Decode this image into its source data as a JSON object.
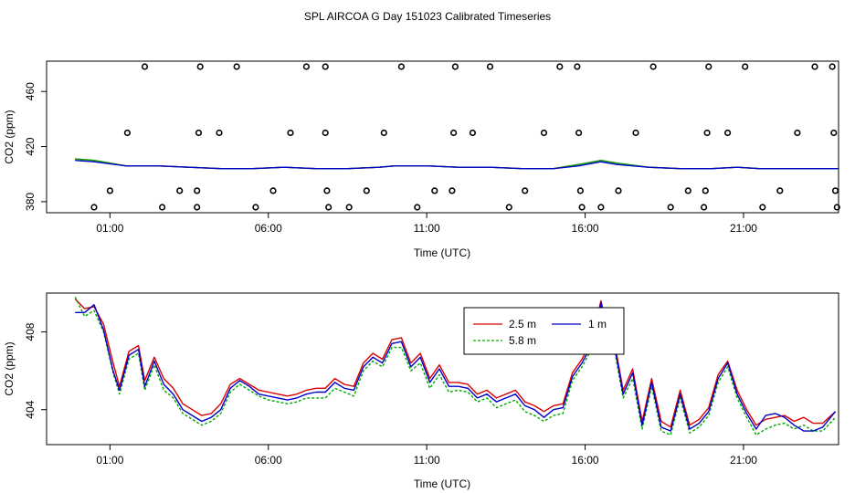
{
  "figure": {
    "title": "SPL AIRCOA G  Day 151023  Calibrated Timeseries"
  },
  "chart_data": [
    {
      "type": "scatter+line",
      "xlabel": "Time (UTC)",
      "ylabel": "CO2 (ppm)",
      "xlim": [
        -1.0,
        24.0
      ],
      "ylim": [
        372,
        482
      ],
      "x_ticks": [
        1,
        6,
        11,
        16,
        21
      ],
      "x_tick_labels": [
        "01:00",
        "06:00",
        "11:00",
        "16:00",
        "21:00"
      ],
      "y_ticks": [
        380,
        420,
        460
      ],
      "y_tick_labels": [
        "380",
        "420",
        "460"
      ],
      "grid": false,
      "legend": "none",
      "points": [
        {
          "x": 0.5,
          "y": 376
        },
        {
          "x": 1.0,
          "y": 388
        },
        {
          "x": 1.55,
          "y": 430
        },
        {
          "x": 2.1,
          "y": 478
        },
        {
          "x": 2.65,
          "y": 376
        },
        {
          "x": 3.2,
          "y": 388
        },
        {
          "x": 3.75,
          "y": 376
        },
        {
          "x": 3.75,
          "y": 388
        },
        {
          "x": 3.8,
          "y": 430
        },
        {
          "x": 3.85,
          "y": 478
        },
        {
          "x": 4.45,
          "y": 430
        },
        {
          "x": 5.0,
          "y": 478
        },
        {
          "x": 5.6,
          "y": 376
        },
        {
          "x": 6.15,
          "y": 388
        },
        {
          "x": 6.7,
          "y": 430
        },
        {
          "x": 7.2,
          "y": 478
        },
        {
          "x": 7.8,
          "y": 478
        },
        {
          "x": 7.8,
          "y": 430
        },
        {
          "x": 7.85,
          "y": 388
        },
        {
          "x": 7.9,
          "y": 376
        },
        {
          "x": 8.55,
          "y": 376
        },
        {
          "x": 9.1,
          "y": 388
        },
        {
          "x": 9.65,
          "y": 430
        },
        {
          "x": 10.2,
          "y": 478
        },
        {
          "x": 10.7,
          "y": 376
        },
        {
          "x": 11.25,
          "y": 388
        },
        {
          "x": 11.8,
          "y": 388
        },
        {
          "x": 11.85,
          "y": 430
        },
        {
          "x": 11.9,
          "y": 478
        },
        {
          "x": 12.45,
          "y": 430
        },
        {
          "x": 13.0,
          "y": 478
        },
        {
          "x": 13.6,
          "y": 376
        },
        {
          "x": 14.1,
          "y": 388
        },
        {
          "x": 14.7,
          "y": 430
        },
        {
          "x": 15.2,
          "y": 478
        },
        {
          "x": 15.75,
          "y": 478
        },
        {
          "x": 15.8,
          "y": 430
        },
        {
          "x": 15.85,
          "y": 388
        },
        {
          "x": 15.9,
          "y": 376
        },
        {
          "x": 16.5,
          "y": 376
        },
        {
          "x": 17.05,
          "y": 388
        },
        {
          "x": 17.6,
          "y": 430
        },
        {
          "x": 18.15,
          "y": 478
        },
        {
          "x": 18.7,
          "y": 376
        },
        {
          "x": 19.25,
          "y": 388
        },
        {
          "x": 19.75,
          "y": 376
        },
        {
          "x": 19.8,
          "y": 388
        },
        {
          "x": 19.85,
          "y": 430
        },
        {
          "x": 19.9,
          "y": 478
        },
        {
          "x": 20.5,
          "y": 430
        },
        {
          "x": 21.05,
          "y": 478
        },
        {
          "x": 21.6,
          "y": 376
        },
        {
          "x": 22.15,
          "y": 388
        },
        {
          "x": 22.7,
          "y": 430
        },
        {
          "x": 23.25,
          "y": 478
        },
        {
          "x": 23.8,
          "y": 478
        },
        {
          "x": 23.85,
          "y": 430
        },
        {
          "x": 23.9,
          "y": 388
        },
        {
          "x": 23.95,
          "y": 376
        }
      ],
      "series": [
        {
          "color": "#dd0000",
          "x": [
            -0.1,
            0.5,
            1.5,
            2.5,
            3.5,
            4.5,
            5.5,
            6.5,
            7.5,
            8.5,
            9.5,
            10.0,
            11.0,
            12.0,
            13.0,
            14.0,
            15.0,
            15.8,
            16.5,
            17.0,
            18.0,
            19.0,
            20.0,
            20.8,
            21.5,
            22.5,
            23.0,
            24.0
          ],
          "values": [
            411,
            410,
            406,
            406,
            405,
            404,
            404,
            405,
            404,
            404,
            405,
            406,
            406,
            405,
            405,
            404,
            404,
            407,
            410,
            408,
            405,
            404,
            404,
            405,
            404,
            404,
            404,
            404
          ]
        },
        {
          "color": "#00aa00",
          "x": [
            -0.1,
            0.5,
            1.5,
            2.5,
            3.5,
            4.5,
            5.5,
            6.5,
            7.5,
            8.5,
            9.5,
            10.0,
            11.0,
            12.0,
            13.0,
            14.0,
            15.0,
            15.8,
            16.5,
            17.0,
            18.0,
            19.0,
            20.0,
            20.8,
            21.5,
            22.5,
            23.0,
            24.0
          ],
          "values": [
            411,
            410,
            406,
            406,
            405,
            404,
            404,
            405,
            404,
            404,
            405,
            406,
            406,
            405,
            405,
            404,
            404,
            407,
            410,
            408,
            405,
            404,
            404,
            405,
            404,
            404,
            404,
            404
          ]
        },
        {
          "color": "#0000cc",
          "x": [
            -0.1,
            0.5,
            1.5,
            2.5,
            3.5,
            4.5,
            5.5,
            6.5,
            7.5,
            8.5,
            9.5,
            10.0,
            11.0,
            12.0,
            13.0,
            14.0,
            15.0,
            15.8,
            16.5,
            17.0,
            18.0,
            19.0,
            20.0,
            20.8,
            21.5,
            22.5,
            23.0,
            24.0
          ],
          "values": [
            410,
            409,
            406,
            406,
            405,
            404,
            404,
            405,
            404,
            404,
            405,
            406,
            406,
            405,
            405,
            404,
            404,
            406,
            409,
            407,
            405,
            404,
            404,
            405,
            404,
            404,
            404,
            404
          ]
        }
      ]
    },
    {
      "type": "line",
      "xlabel": "Time (UTC)",
      "ylabel": "CO2 (ppm)",
      "xlim": [
        -1.0,
        24.0
      ],
      "ylim": [
        402.2,
        410.0
      ],
      "x_ticks": [
        1,
        6,
        11,
        16,
        21
      ],
      "x_tick_labels": [
        "01:00",
        "06:00",
        "11:00",
        "16:00",
        "21:00"
      ],
      "y_ticks": [
        404,
        408
      ],
      "y_tick_labels": [
        "404",
        "408"
      ],
      "grid": false,
      "legend": "top-right",
      "series": [
        {
          "name": "2.5 m",
          "color": "#dd0000",
          "dash": "",
          "x": [
            -0.1,
            0.2,
            0.5,
            0.8,
            1.1,
            1.3,
            1.6,
            1.9,
            2.1,
            2.4,
            2.7,
            3.0,
            3.3,
            3.6,
            3.9,
            4.2,
            4.5,
            4.8,
            5.1,
            5.4,
            5.7,
            6.0,
            6.3,
            6.6,
            6.9,
            7.2,
            7.5,
            7.8,
            8.1,
            8.4,
            8.7,
            9.0,
            9.3,
            9.6,
            9.9,
            10.2,
            10.5,
            10.8,
            11.1,
            11.4,
            11.7,
            12.0,
            12.3,
            12.6,
            12.9,
            13.2,
            13.5,
            13.8,
            14.1,
            14.4,
            14.7,
            15.0,
            15.3,
            15.6,
            15.9,
            16.2,
            16.5,
            16.7,
            16.9,
            17.2,
            17.5,
            17.8,
            18.1,
            18.4,
            18.7,
            19.0,
            19.3,
            19.6,
            19.9,
            20.2,
            20.5,
            20.8,
            21.1,
            21.4,
            21.7,
            22.0,
            22.3,
            22.6,
            22.9,
            23.2,
            23.5,
            23.9
          ],
          "values": [
            409.7,
            409.2,
            409.3,
            408.4,
            406.4,
            405.2,
            407.0,
            407.3,
            405.5,
            406.7,
            405.6,
            405.1,
            404.3,
            404.0,
            403.7,
            403.8,
            404.3,
            405.3,
            405.6,
            405.3,
            405.0,
            404.9,
            404.8,
            404.7,
            404.8,
            405.0,
            405.1,
            405.1,
            405.6,
            405.3,
            405.2,
            406.4,
            406.9,
            406.6,
            407.6,
            407.7,
            406.4,
            406.9,
            405.6,
            406.3,
            405.4,
            405.4,
            405.3,
            404.8,
            405.0,
            404.6,
            404.8,
            405.0,
            404.4,
            404.2,
            403.9,
            404.2,
            404.3,
            405.9,
            406.6,
            407.5,
            409.6,
            408.2,
            407.7,
            405.0,
            406.1,
            403.4,
            405.6,
            403.4,
            403.1,
            405.0,
            403.2,
            403.5,
            404.1,
            405.8,
            406.5,
            405.0,
            404.0,
            403.2,
            403.5,
            403.6,
            403.7,
            403.4,
            403.6,
            403.3,
            403.3,
            403.9
          ]
        },
        {
          "name": "5.8 m",
          "color": "#00aa00",
          "dash": "3,2",
          "x": [
            -0.1,
            0.2,
            0.5,
            0.8,
            1.1,
            1.3,
            1.6,
            1.9,
            2.1,
            2.4,
            2.7,
            3.0,
            3.3,
            3.6,
            3.9,
            4.2,
            4.5,
            4.8,
            5.1,
            5.4,
            5.7,
            6.0,
            6.3,
            6.6,
            6.9,
            7.2,
            7.5,
            7.8,
            8.1,
            8.4,
            8.7,
            9.0,
            9.3,
            9.6,
            9.9,
            10.2,
            10.5,
            10.8,
            11.1,
            11.4,
            11.7,
            12.0,
            12.3,
            12.6,
            12.9,
            13.2,
            13.5,
            13.8,
            14.1,
            14.4,
            14.7,
            15.0,
            15.3,
            15.6,
            15.9,
            16.2,
            16.5,
            16.7,
            16.9,
            17.2,
            17.5,
            17.8,
            18.1,
            18.4,
            18.7,
            19.0,
            19.3,
            19.6,
            19.9,
            20.2,
            20.5,
            20.8,
            21.1,
            21.4,
            21.7,
            22.0,
            22.3,
            22.6,
            22.9,
            23.2,
            23.5,
            23.9
          ],
          "values": [
            409.8,
            408.8,
            409.1,
            408.0,
            405.9,
            404.8,
            406.6,
            406.9,
            405.0,
            406.3,
            405.0,
            404.6,
            403.8,
            403.5,
            403.2,
            403.4,
            403.8,
            404.9,
            405.3,
            405.0,
            404.7,
            404.5,
            404.4,
            404.3,
            404.4,
            404.6,
            404.6,
            404.6,
            405.1,
            404.9,
            404.7,
            406.0,
            406.5,
            406.2,
            407.2,
            407.2,
            406.0,
            406.4,
            405.1,
            405.8,
            404.9,
            405.0,
            404.9,
            404.4,
            404.6,
            404.1,
            404.3,
            404.5,
            403.9,
            403.7,
            403.4,
            403.7,
            403.8,
            405.5,
            406.2,
            407.1,
            409.3,
            407.8,
            407.3,
            404.6,
            405.6,
            403.0,
            405.2,
            402.9,
            402.7,
            404.6,
            402.8,
            403.1,
            403.7,
            405.4,
            406.2,
            404.6,
            403.6,
            402.7,
            403.0,
            403.2,
            403.3,
            403.0,
            403.2,
            402.9,
            402.9,
            403.6
          ]
        },
        {
          "name": "1 m",
          "color": "#0000cc",
          "dash": "",
          "x": [
            -0.1,
            0.2,
            0.5,
            0.8,
            1.1,
            1.3,
            1.6,
            1.9,
            2.1,
            2.4,
            2.7,
            3.0,
            3.3,
            3.6,
            3.9,
            4.2,
            4.5,
            4.8,
            5.1,
            5.4,
            5.7,
            6.0,
            6.3,
            6.6,
            6.9,
            7.2,
            7.5,
            7.8,
            8.1,
            8.4,
            8.7,
            9.0,
            9.3,
            9.6,
            9.9,
            10.2,
            10.5,
            10.8,
            11.1,
            11.4,
            11.7,
            12.0,
            12.3,
            12.6,
            12.9,
            13.2,
            13.5,
            13.8,
            14.1,
            14.4,
            14.7,
            15.0,
            15.3,
            15.6,
            15.9,
            16.2,
            16.5,
            16.7,
            16.9,
            17.2,
            17.5,
            17.8,
            18.1,
            18.4,
            18.7,
            19.0,
            19.3,
            19.6,
            19.9,
            20.2,
            20.5,
            20.8,
            21.1,
            21.4,
            21.7,
            22.0,
            22.3,
            22.6,
            22.9,
            23.2,
            23.5,
            23.9
          ],
          "values": [
            409.0,
            409.0,
            409.4,
            408.1,
            406.0,
            405.0,
            406.8,
            407.1,
            405.2,
            406.5,
            405.3,
            404.8,
            404.0,
            403.7,
            403.4,
            403.6,
            404.0,
            405.1,
            405.5,
            405.2,
            404.8,
            404.7,
            404.6,
            404.5,
            404.6,
            404.8,
            404.9,
            404.9,
            405.4,
            405.1,
            405.0,
            406.2,
            406.7,
            406.4,
            407.4,
            407.5,
            406.2,
            406.7,
            405.4,
            406.1,
            405.2,
            405.2,
            405.1,
            404.6,
            404.8,
            404.4,
            404.6,
            404.8,
            404.2,
            404.0,
            403.6,
            404.0,
            404.1,
            405.7,
            406.4,
            407.3,
            409.5,
            408.0,
            407.5,
            404.8,
            405.9,
            403.2,
            405.4,
            403.1,
            402.9,
            404.8,
            403.0,
            403.3,
            403.9,
            405.6,
            406.4,
            404.8,
            403.8,
            403.0,
            403.7,
            403.8,
            403.6,
            403.2,
            402.9,
            402.9,
            403.1,
            403.9
          ]
        }
      ]
    }
  ]
}
